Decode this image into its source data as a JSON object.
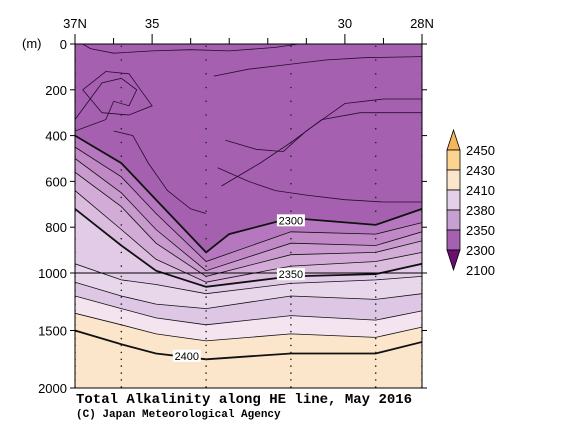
{
  "chart_data": {
    "type": "contour",
    "title": "Total Alkalinity along HE line, May 2016",
    "credit": "(C) Japan Meteorological Agency",
    "xlabel": "",
    "ylabel": "(m)",
    "x_range": [
      37,
      28
    ],
    "ylim": [
      0,
      2000
    ],
    "x_ticks": [
      "37N",
      "35",
      "30",
      "28N"
    ],
    "y_ticks": [
      "0",
      "200",
      "400",
      "600",
      "800",
      "1000",
      "1500",
      "2000"
    ],
    "y_scale": "piecewise: 0-1000 m stretched, 1000-2000 m compressed",
    "stations_lat": [
      37,
      35.8,
      33.6,
      31.4,
      29.2,
      28
    ],
    "colorbar_levels": [
      "2450",
      "2430",
      "2410",
      "2380",
      "2350",
      "2300",
      "2100"
    ],
    "colorbar_colors": [
      "#f6b75a",
      "#fbd58f",
      "#fbe6cb",
      "#e4cfe8",
      "#c79fd0",
      "#a560b0",
      "#6b1070"
    ],
    "contour_labels": [
      {
        "text": "2300",
        "lat": 31.4,
        "depth": 770
      },
      {
        "text": "2350",
        "lat": 31.4,
        "depth": 1010
      },
      {
        "text": "2400",
        "lat": 34.1,
        "depth": 1720
      }
    ],
    "contours": [
      {
        "level": 2300,
        "bold": true,
        "points": [
          [
            37,
            400
          ],
          [
            35.8,
            520
          ],
          [
            34.9,
            680
          ],
          [
            33.6,
            910
          ],
          [
            33.0,
            830
          ],
          [
            31.4,
            760
          ],
          [
            29.2,
            790
          ],
          [
            28,
            720
          ]
        ]
      },
      {
        "level": 2310,
        "bold": false,
        "points": [
          [
            37,
            450
          ],
          [
            35.8,
            580
          ],
          [
            34.9,
            740
          ],
          [
            33.6,
            950
          ],
          [
            31.4,
            820
          ],
          [
            29.2,
            830
          ],
          [
            28,
            780
          ]
        ]
      },
      {
        "level": 2320,
        "bold": false,
        "points": [
          [
            37,
            500
          ],
          [
            35.8,
            650
          ],
          [
            34.9,
            810
          ],
          [
            33.6,
            990
          ],
          [
            31.4,
            870
          ],
          [
            29.2,
            880
          ],
          [
            28,
            820
          ]
        ]
      },
      {
        "level": 2330,
        "bold": false,
        "points": [
          [
            37,
            560
          ],
          [
            35.8,
            710
          ],
          [
            34.9,
            870
          ],
          [
            33.6,
            1030
          ],
          [
            31.4,
            920
          ],
          [
            29.2,
            910
          ],
          [
            28,
            860
          ]
        ]
      },
      {
        "level": 2340,
        "bold": false,
        "points": [
          [
            37,
            640
          ],
          [
            35.8,
            810
          ],
          [
            34.9,
            940
          ],
          [
            33.6,
            1080
          ],
          [
            31.4,
            970
          ],
          [
            29.2,
            950
          ],
          [
            28,
            910
          ]
        ]
      },
      {
        "level": 2350,
        "bold": true,
        "points": [
          [
            37,
            720
          ],
          [
            35.8,
            880
          ],
          [
            34.9,
            990
          ],
          [
            33.6,
            1120
          ],
          [
            31.4,
            1030
          ],
          [
            29.2,
            1010
          ],
          [
            28,
            960
          ]
        ]
      },
      {
        "level": 2360,
        "bold": false,
        "points": [
          [
            37,
            960
          ],
          [
            35.8,
            1060
          ],
          [
            34.9,
            1100
          ],
          [
            33.6,
            1180
          ],
          [
            31.4,
            1090
          ],
          [
            29.2,
            1060
          ],
          [
            28,
            1030
          ]
        ]
      },
      {
        "level": 2370,
        "bold": false,
        "points": [
          [
            37,
            1080
          ],
          [
            35.8,
            1200
          ],
          [
            34.9,
            1270
          ],
          [
            33.6,
            1310
          ],
          [
            31.4,
            1200
          ],
          [
            29.2,
            1230
          ],
          [
            28,
            1180
          ]
        ]
      },
      {
        "level": 2380,
        "bold": false,
        "points": [
          [
            37,
            1200
          ],
          [
            35.8,
            1310
          ],
          [
            34.9,
            1390
          ],
          [
            33.6,
            1450
          ],
          [
            31.4,
            1370
          ],
          [
            29.2,
            1410
          ],
          [
            28,
            1330
          ]
        ]
      },
      {
        "level": 2390,
        "bold": false,
        "points": [
          [
            37,
            1350
          ],
          [
            35.8,
            1450
          ],
          [
            34.9,
            1530
          ],
          [
            33.6,
            1590
          ],
          [
            31.4,
            1530
          ],
          [
            29.2,
            1560
          ],
          [
            28,
            1470
          ]
        ]
      },
      {
        "level": 2400,
        "bold": true,
        "points": [
          [
            37,
            1500
          ],
          [
            35.8,
            1620
          ],
          [
            34.9,
            1700
          ],
          [
            33.6,
            1750
          ],
          [
            31.4,
            1700
          ],
          [
            29.2,
            1700
          ],
          [
            28,
            1600
          ]
        ]
      }
    ],
    "interior_contours": [
      [
        [
          36.8,
          0
        ],
        [
          36.6,
          20
        ],
        [
          36.0,
          40
        ],
        [
          35.0,
          30
        ],
        [
          34.0,
          25
        ],
        [
          33.0,
          30
        ],
        [
          31.8,
          15
        ],
        [
          31.2,
          0
        ]
      ],
      [
        [
          36.8,
          200
        ],
        [
          36.2,
          120
        ],
        [
          35.6,
          130
        ],
        [
          35.3,
          200
        ],
        [
          35.0,
          270
        ],
        [
          35.6,
          310
        ],
        [
          36.3,
          300
        ],
        [
          36.8,
          200
        ]
      ],
      [
        [
          37,
          330
        ],
        [
          36.3,
          170
        ],
        [
          35.8,
          150
        ],
        [
          35.4,
          200
        ],
        [
          35.6,
          270
        ],
        [
          36.0,
          250
        ],
        [
          36.2,
          330
        ],
        [
          37,
          380
        ]
      ],
      [
        [
          36.0,
          380
        ],
        [
          35.5,
          400
        ],
        [
          35.1,
          520
        ],
        [
          34.6,
          640
        ],
        [
          34.0,
          720
        ],
        [
          33.6,
          740
        ]
      ],
      [
        [
          33.2,
          620
        ],
        [
          32.2,
          520
        ],
        [
          31.4,
          430
        ],
        [
          30.6,
          330
        ],
        [
          29.6,
          300
        ],
        [
          28,
          300
        ]
      ],
      [
        [
          33.1,
          420
        ],
        [
          32.3,
          460
        ],
        [
          31.6,
          470
        ],
        [
          31.0,
          380
        ],
        [
          30.0,
          260
        ],
        [
          29.0,
          240
        ],
        [
          28,
          240
        ]
      ],
      [
        [
          33.4,
          140
        ],
        [
          32.5,
          110
        ],
        [
          31.5,
          90
        ],
        [
          30.5,
          70
        ],
        [
          29.5,
          60
        ],
        [
          28,
          55
        ]
      ],
      [
        [
          33.3,
          540
        ],
        [
          32.5,
          600
        ],
        [
          31.8,
          640
        ],
        [
          31.0,
          660
        ],
        [
          30.0,
          680
        ],
        [
          29.0,
          690
        ],
        [
          28,
          690
        ]
      ]
    ]
  }
}
